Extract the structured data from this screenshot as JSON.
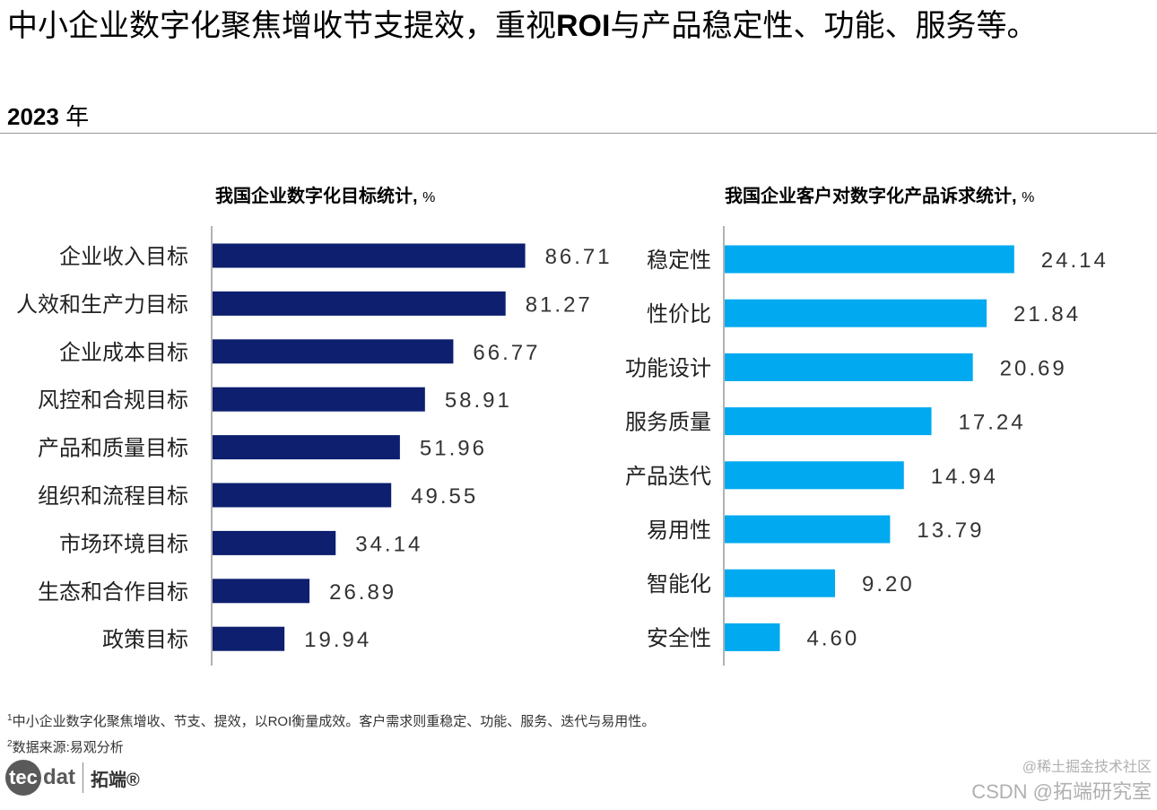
{
  "header": {
    "headline_part1": "中小企业数字化聚焦增收节支提效，重视",
    "headline_bold": "ROI",
    "headline_part2": "与产品稳定性、功能、服务等。",
    "year": "2023",
    "year_unit": "年"
  },
  "chart_data": [
    {
      "type": "bar",
      "orientation": "horizontal",
      "title": "我国企业数字化目标统计,",
      "unit": "%",
      "color": "#0d1f6e",
      "xlim": [
        0,
        100
      ],
      "categories": [
        "企业收入目标",
        "人效和生产力目标",
        "企业成本目标",
        "风控和合规目标",
        "产品和质量目标",
        "组织和流程目标",
        "市场环境目标",
        "生态和合作目标",
        "政策目标"
      ],
      "values": [
        86.71,
        81.27,
        66.77,
        58.91,
        51.96,
        49.55,
        34.14,
        26.89,
        19.94
      ],
      "labels": [
        "86.71",
        "81.27",
        "66.77",
        "58.91",
        "51.96",
        "49.55",
        "34.14",
        "26.89",
        "19.94"
      ]
    },
    {
      "type": "bar",
      "orientation": "horizontal",
      "title": "我国企业客户对数字化产品诉求统计,",
      "unit": "%",
      "color": "#00a9f0",
      "xlim": [
        0,
        35
      ],
      "categories": [
        "稳定性",
        "性价比",
        "功能设计",
        "服务质量",
        "产品迭代",
        "易用性",
        "智能化",
        "安全性"
      ],
      "values": [
        24.14,
        21.84,
        20.69,
        17.24,
        14.94,
        13.79,
        9.2,
        4.6
      ],
      "labels": [
        "24.14",
        "21.84",
        "20.69",
        "17.24",
        "14.94",
        "13.79",
        "9.20",
        "4.60"
      ]
    }
  ],
  "notes": {
    "note1_num": "1",
    "note1": "中小企业数字化聚焦增收、节支、提效，以ROI衡量成效。客户需求则重稳定、功能、服务、迭代与易用性。",
    "note2_num": "2",
    "note2": "数据来源:易观分析"
  },
  "logo": {
    "circle_text": "tec",
    "rest_text": "dat",
    "cn_text": "拓端®"
  },
  "watermark": {
    "line1": "@稀土掘金技术社区",
    "line2": "CSDN @拓端研究室"
  }
}
